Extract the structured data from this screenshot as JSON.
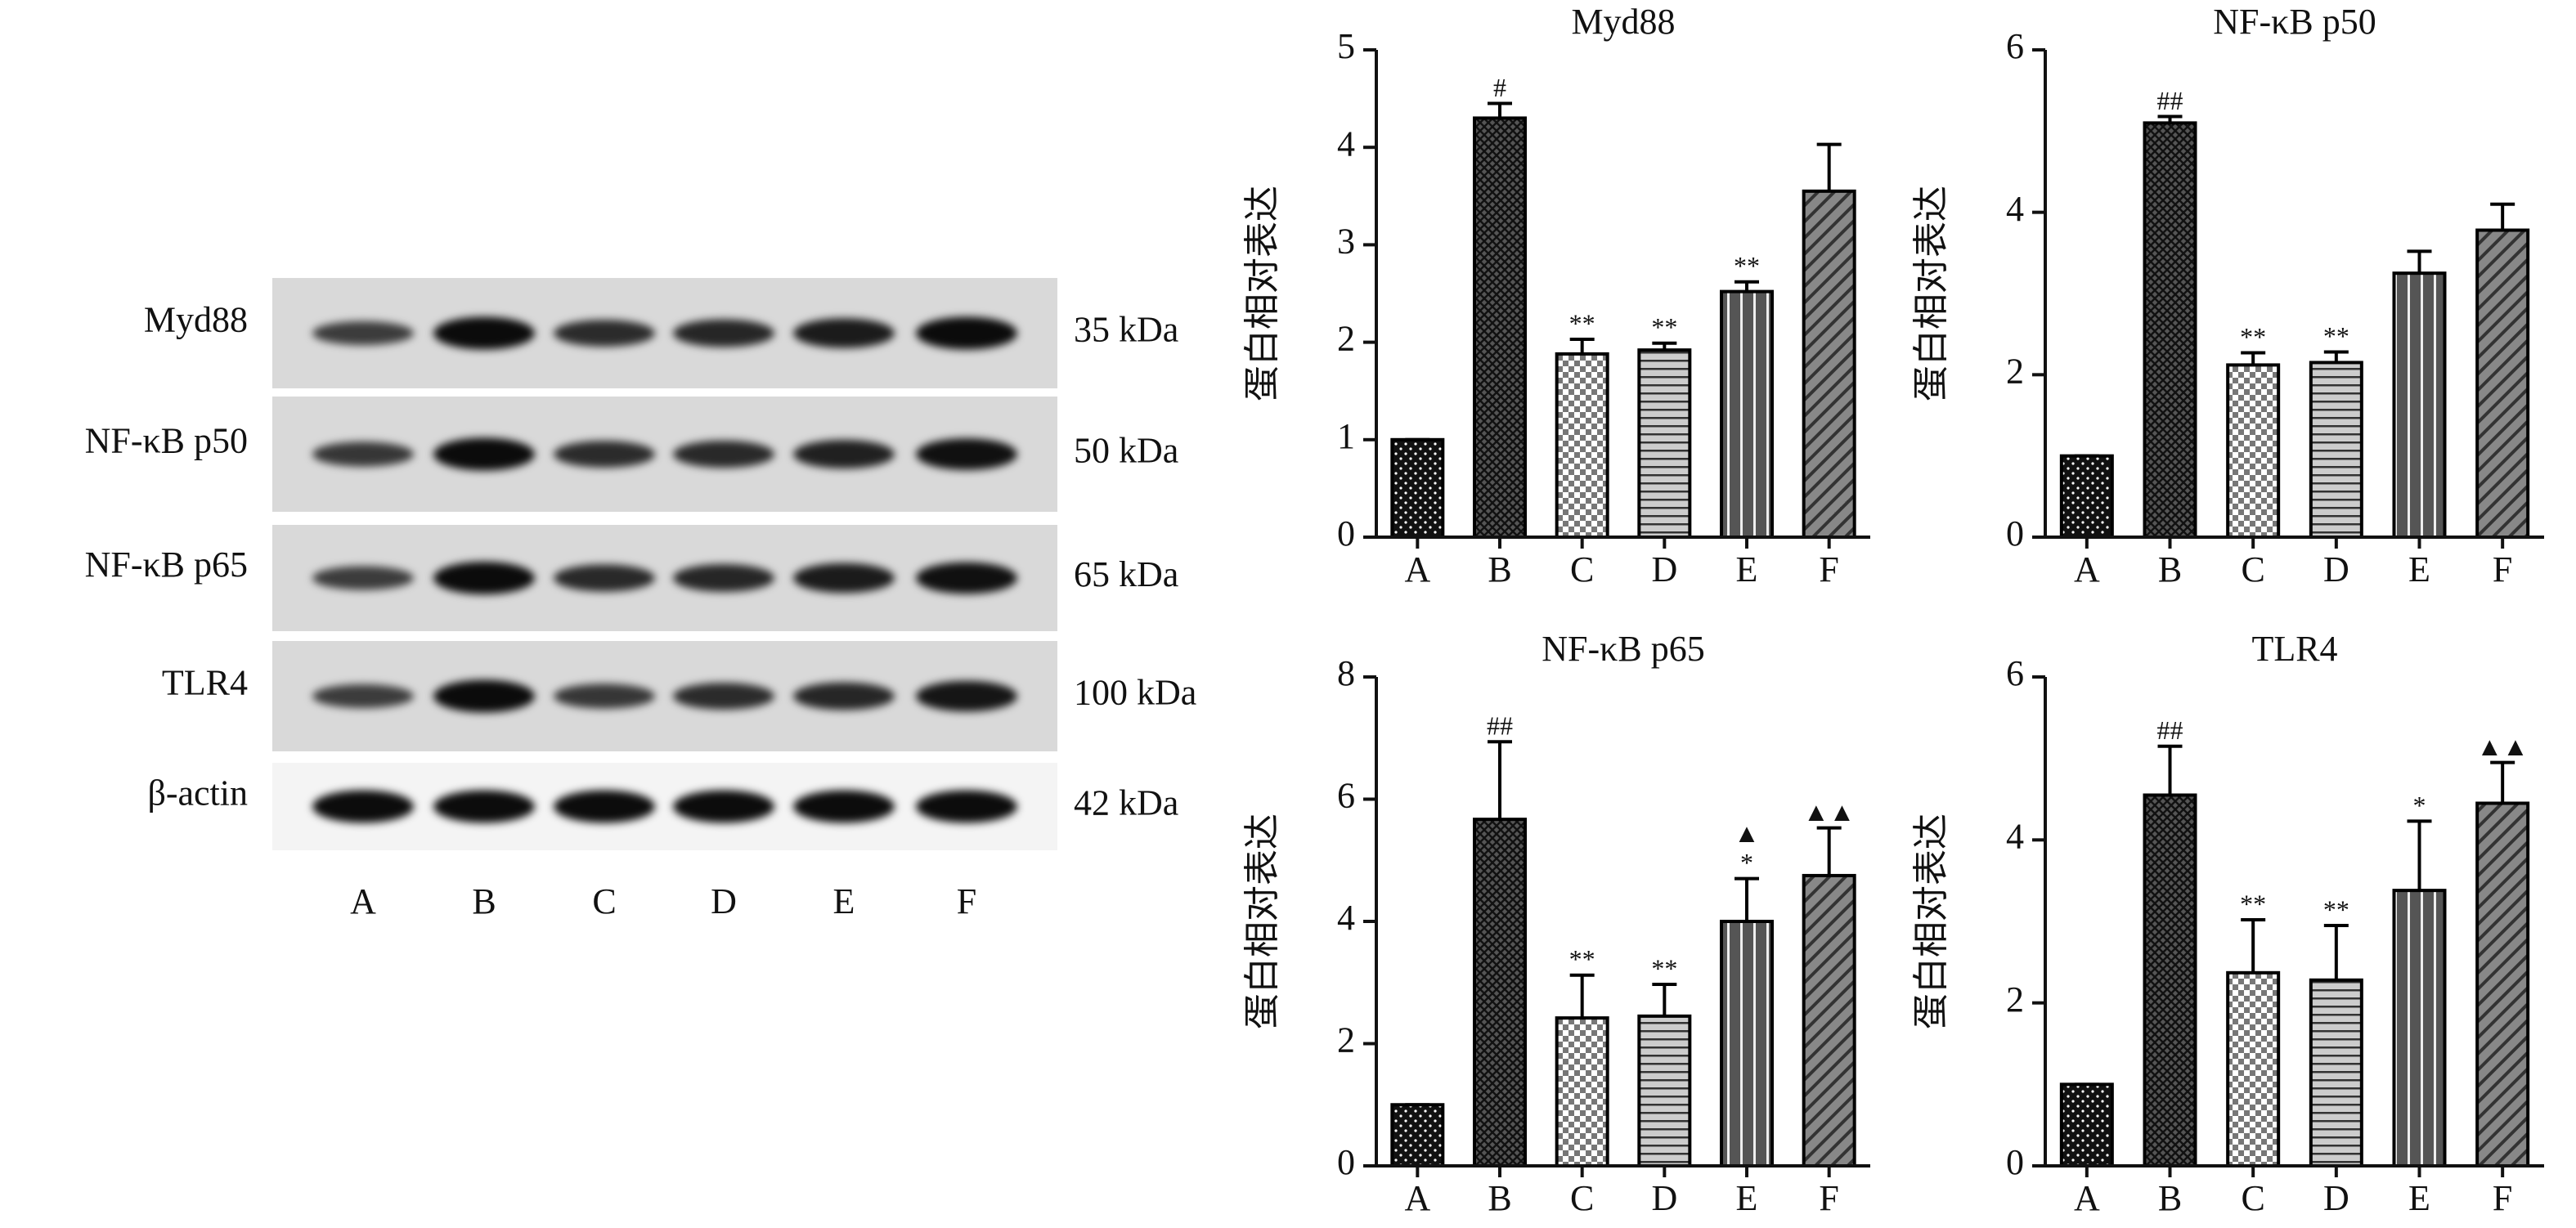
{
  "blot": {
    "rows": [
      {
        "label": "Myd88",
        "size": "35 kDa"
      },
      {
        "label": "NF-κB p50",
        "size": "50 kDa"
      },
      {
        "label": "NF-κB p65",
        "size": "65 kDa"
      },
      {
        "label": "TLR4",
        "size": "100 kDa"
      },
      {
        "label": "β-actin",
        "size": "42 kDa"
      }
    ],
    "lanes": [
      "A",
      "B",
      "C",
      "D",
      "E",
      "F"
    ]
  },
  "chart_data": [
    {
      "type": "bar",
      "title": "Myd88",
      "y_label": "蛋白相对表达",
      "categories": [
        "A",
        "B",
        "C",
        "D",
        "E",
        "F"
      ],
      "values": [
        1.0,
        4.3,
        1.88,
        1.92,
        2.52,
        3.55
      ],
      "errors": [
        0,
        0.15,
        0.15,
        0.07,
        0.1,
        0.48
      ],
      "annotations": [
        null,
        [
          "#"
        ],
        [
          "**"
        ],
        [
          "**"
        ],
        [
          "**"
        ],
        null
      ],
      "patterns": [
        "dots",
        "crosshatch",
        "checker",
        "hlines",
        "vlines",
        "diag"
      ],
      "color": "#000000",
      "ylim": [
        0,
        5
      ],
      "yticks": [
        0,
        1,
        2,
        3,
        4,
        5
      ]
    },
    {
      "type": "bar",
      "title": "NF-κB p50",
      "y_label": "蛋白相对表达",
      "categories": [
        "A",
        "B",
        "C",
        "D",
        "E",
        "F"
      ],
      "values": [
        1.0,
        5.1,
        2.12,
        2.15,
        3.25,
        3.78
      ],
      "errors": [
        0,
        0.08,
        0.15,
        0.13,
        0.27,
        0.32
      ],
      "annotations": [
        null,
        [
          "##"
        ],
        [
          "**"
        ],
        [
          "**"
        ],
        null,
        null
      ],
      "patterns": [
        "dots",
        "crosshatch",
        "checker",
        "hlines",
        "vlines",
        "diag"
      ],
      "color": "#000000",
      "ylim": [
        0,
        6
      ],
      "yticks": [
        0,
        2,
        4,
        6
      ]
    },
    {
      "type": "bar",
      "title": "NF-κB p65",
      "y_label": "蛋白相对表达",
      "categories": [
        "A",
        "B",
        "C",
        "D",
        "E",
        "F"
      ],
      "values": [
        1.0,
        5.67,
        2.42,
        2.45,
        4.0,
        4.75
      ],
      "errors": [
        0,
        1.27,
        0.7,
        0.52,
        0.7,
        0.78
      ],
      "annotations": [
        null,
        [
          "##"
        ],
        [
          "**"
        ],
        [
          "**"
        ],
        [
          "▲",
          "*"
        ],
        [
          "▲▲"
        ]
      ],
      "patterns": [
        "dots",
        "crosshatch",
        "checker",
        "hlines",
        "vlines",
        "diag"
      ],
      "color": "#000000",
      "ylim": [
        0,
        8
      ],
      "yticks": [
        0,
        2,
        4,
        6,
        8
      ]
    },
    {
      "type": "bar",
      "title": "TLR4",
      "y_label": "蛋白相对表达",
      "categories": [
        "A",
        "B",
        "C",
        "D",
        "E",
        "F"
      ],
      "values": [
        1.0,
        4.55,
        2.37,
        2.28,
        3.38,
        4.45
      ],
      "errors": [
        0,
        0.6,
        0.65,
        0.67,
        0.85,
        0.5
      ],
      "annotations": [
        null,
        [
          "##"
        ],
        [
          "**"
        ],
        [
          "**"
        ],
        [
          "*"
        ],
        [
          "▲▲"
        ]
      ],
      "patterns": [
        "dots",
        "crosshatch",
        "checker",
        "hlines",
        "vlines",
        "diag"
      ],
      "color": "#000000",
      "ylim": [
        0,
        6
      ],
      "yticks": [
        0,
        2,
        4,
        6
      ]
    }
  ]
}
